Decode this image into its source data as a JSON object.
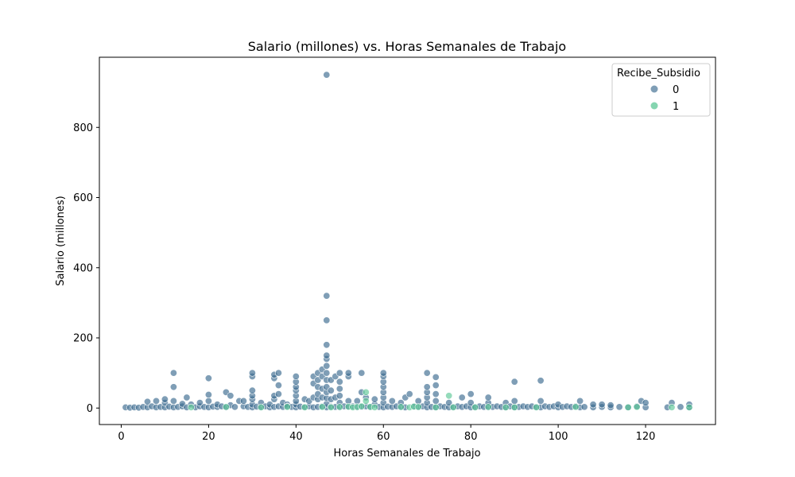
{
  "colors": {
    "series_0": "#3b6a8f",
    "series_1": "#5cc796",
    "axis": "#000000"
  },
  "chart_data": {
    "type": "scatter",
    "title": "Salario (millones) vs. Horas Semanales de Trabajo",
    "xlabel": "Horas Semanales de Trabajo",
    "ylabel": "Salario (millones)",
    "xlim": [
      -5,
      136
    ],
    "ylim": [
      -47,
      1000
    ],
    "xticks": [
      0,
      20,
      40,
      60,
      80,
      100,
      120
    ],
    "yticks": [
      0,
      200,
      400,
      600,
      800
    ],
    "grid": false,
    "legend": {
      "title": "Recibe_Subsidio",
      "placement": "top-right",
      "entries": [
        "0",
        "1"
      ]
    },
    "series": [
      {
        "name": "0",
        "points": [
          [
            1,
            2
          ],
          [
            2,
            1
          ],
          [
            3,
            2
          ],
          [
            4,
            1
          ],
          [
            5,
            3
          ],
          [
            6,
            2
          ],
          [
            6,
            18
          ],
          [
            7,
            5
          ],
          [
            8,
            2
          ],
          [
            8,
            20
          ],
          [
            9,
            3
          ],
          [
            10,
            2
          ],
          [
            10,
            15
          ],
          [
            10,
            25
          ],
          [
            11,
            4
          ],
          [
            12,
            2
          ],
          [
            12,
            20
          ],
          [
            12,
            60
          ],
          [
            12,
            100
          ],
          [
            13,
            3
          ],
          [
            14,
            5
          ],
          [
            14,
            12
          ],
          [
            15,
            2
          ],
          [
            15,
            30
          ],
          [
            16,
            10
          ],
          [
            17,
            2
          ],
          [
            18,
            5
          ],
          [
            18,
            15
          ],
          [
            19,
            3
          ],
          [
            20,
            2
          ],
          [
            20,
            20
          ],
          [
            20,
            38
          ],
          [
            20,
            85
          ],
          [
            21,
            4
          ],
          [
            22,
            3
          ],
          [
            22,
            10
          ],
          [
            23,
            5
          ],
          [
            24,
            2
          ],
          [
            24,
            45
          ],
          [
            25,
            8
          ],
          [
            25,
            35
          ],
          [
            26,
            3
          ],
          [
            27,
            20
          ],
          [
            28,
            5
          ],
          [
            28,
            20
          ],
          [
            29,
            3
          ],
          [
            30,
            2
          ],
          [
            30,
            10
          ],
          [
            30,
            25
          ],
          [
            30,
            35
          ],
          [
            30,
            50
          ],
          [
            30,
            90
          ],
          [
            30,
            100
          ],
          [
            31,
            4
          ],
          [
            32,
            3
          ],
          [
            32,
            15
          ],
          [
            33,
            5
          ],
          [
            34,
            2
          ],
          [
            34,
            10
          ],
          [
            35,
            3
          ],
          [
            35,
            25
          ],
          [
            35,
            35
          ],
          [
            35,
            85
          ],
          [
            35,
            95
          ],
          [
            36,
            5
          ],
          [
            36,
            40
          ],
          [
            36,
            65
          ],
          [
            36,
            100
          ],
          [
            37,
            3
          ],
          [
            37,
            15
          ],
          [
            38,
            10
          ],
          [
            38,
            5
          ],
          [
            39,
            3
          ],
          [
            40,
            2
          ],
          [
            40,
            10
          ],
          [
            40,
            20
          ],
          [
            40,
            35
          ],
          [
            40,
            50
          ],
          [
            40,
            60
          ],
          [
            40,
            75
          ],
          [
            40,
            90
          ],
          [
            41,
            4
          ],
          [
            42,
            3
          ],
          [
            42,
            25
          ],
          [
            43,
            5
          ],
          [
            43,
            20
          ],
          [
            44,
            2
          ],
          [
            44,
            30
          ],
          [
            44,
            70
          ],
          [
            44,
            90
          ],
          [
            45,
            3
          ],
          [
            45,
            25
          ],
          [
            45,
            40
          ],
          [
            45,
            60
          ],
          [
            45,
            80
          ],
          [
            45,
            100
          ],
          [
            46,
            5
          ],
          [
            46,
            30
          ],
          [
            46,
            55
          ],
          [
            46,
            90
          ],
          [
            46,
            110
          ],
          [
            47,
            2
          ],
          [
            47,
            12
          ],
          [
            47,
            28
          ],
          [
            47,
            45
          ],
          [
            47,
            60
          ],
          [
            47,
            80
          ],
          [
            47,
            100
          ],
          [
            47,
            120
          ],
          [
            47,
            140
          ],
          [
            47,
            150
          ],
          [
            47,
            180
          ],
          [
            47,
            250
          ],
          [
            47,
            320
          ],
          [
            47,
            950
          ],
          [
            48,
            4
          ],
          [
            48,
            25
          ],
          [
            48,
            50
          ],
          [
            48,
            80
          ],
          [
            49,
            3
          ],
          [
            49,
            30
          ],
          [
            49,
            90
          ],
          [
            50,
            2
          ],
          [
            50,
            15
          ],
          [
            50,
            35
          ],
          [
            50,
            55
          ],
          [
            50,
            75
          ],
          [
            50,
            100
          ],
          [
            51,
            5
          ],
          [
            52,
            3
          ],
          [
            52,
            20
          ],
          [
            52,
            90
          ],
          [
            52,
            100
          ],
          [
            53,
            5
          ],
          [
            54,
            2
          ],
          [
            54,
            20
          ],
          [
            55,
            3
          ],
          [
            55,
            45
          ],
          [
            55,
            100
          ],
          [
            56,
            5
          ],
          [
            56,
            30
          ],
          [
            57,
            3
          ],
          [
            58,
            10
          ],
          [
            58,
            25
          ],
          [
            59,
            3
          ],
          [
            60,
            2
          ],
          [
            60,
            15
          ],
          [
            60,
            30
          ],
          [
            60,
            45
          ],
          [
            60,
            60
          ],
          [
            60,
            75
          ],
          [
            60,
            90
          ],
          [
            60,
            100
          ],
          [
            61,
            4
          ],
          [
            62,
            3
          ],
          [
            62,
            20
          ],
          [
            63,
            5
          ],
          [
            64,
            3
          ],
          [
            64,
            15
          ],
          [
            65,
            2
          ],
          [
            65,
            30
          ],
          [
            66,
            40
          ],
          [
            67,
            5
          ],
          [
            68,
            3
          ],
          [
            68,
            20
          ],
          [
            69,
            5
          ],
          [
            70,
            2
          ],
          [
            70,
            15
          ],
          [
            70,
            30
          ],
          [
            70,
            45
          ],
          [
            70,
            60
          ],
          [
            70,
            100
          ],
          [
            71,
            3
          ],
          [
            72,
            2
          ],
          [
            72,
            20
          ],
          [
            72,
            40
          ],
          [
            72,
            65
          ],
          [
            72,
            88
          ],
          [
            73,
            5
          ],
          [
            74,
            3
          ],
          [
            75,
            2
          ],
          [
            75,
            15
          ],
          [
            76,
            3
          ],
          [
            77,
            5
          ],
          [
            78,
            3
          ],
          [
            78,
            30
          ],
          [
            79,
            5
          ],
          [
            80,
            2
          ],
          [
            80,
            15
          ],
          [
            80,
            40
          ],
          [
            81,
            3
          ],
          [
            82,
            5
          ],
          [
            83,
            3
          ],
          [
            84,
            2
          ],
          [
            84,
            15
          ],
          [
            84,
            30
          ],
          [
            85,
            3
          ],
          [
            86,
            5
          ],
          [
            87,
            3
          ],
          [
            88,
            2
          ],
          [
            88,
            15
          ],
          [
            89,
            5
          ],
          [
            90,
            2
          ],
          [
            90,
            20
          ],
          [
            90,
            75
          ],
          [
            91,
            3
          ],
          [
            92,
            5
          ],
          [
            93,
            3
          ],
          [
            94,
            5
          ],
          [
            95,
            3
          ],
          [
            96,
            2
          ],
          [
            96,
            20
          ],
          [
            96,
            78
          ],
          [
            97,
            5
          ],
          [
            98,
            3
          ],
          [
            99,
            5
          ],
          [
            100,
            2
          ],
          [
            100,
            10
          ],
          [
            101,
            3
          ],
          [
            102,
            5
          ],
          [
            103,
            3
          ],
          [
            104,
            5
          ],
          [
            105,
            2
          ],
          [
            105,
            20
          ],
          [
            106,
            3
          ],
          [
            108,
            2
          ],
          [
            108,
            10
          ],
          [
            110,
            3
          ],
          [
            110,
            10
          ],
          [
            112,
            2
          ],
          [
            112,
            8
          ],
          [
            114,
            3
          ],
          [
            116,
            2
          ],
          [
            118,
            5
          ],
          [
            119,
            20
          ],
          [
            120,
            2
          ],
          [
            120,
            15
          ],
          [
            125,
            2
          ],
          [
            126,
            15
          ],
          [
            128,
            3
          ],
          [
            130,
            2
          ],
          [
            130,
            10
          ]
        ]
      },
      {
        "name": "1",
        "points": [
          [
            16,
            2
          ],
          [
            24,
            3
          ],
          [
            32,
            2
          ],
          [
            38,
            3
          ],
          [
            42,
            2
          ],
          [
            46,
            3
          ],
          [
            48,
            2
          ],
          [
            50,
            3
          ],
          [
            52,
            4
          ],
          [
            53,
            2
          ],
          [
            54,
            3
          ],
          [
            55,
            5
          ],
          [
            56,
            20
          ],
          [
            56,
            45
          ],
          [
            57,
            3
          ],
          [
            58,
            2
          ],
          [
            64,
            3
          ],
          [
            66,
            2
          ],
          [
            67,
            4
          ],
          [
            68,
            3
          ],
          [
            72,
            2
          ],
          [
            75,
            35
          ],
          [
            76,
            2
          ],
          [
            81,
            2
          ],
          [
            84,
            3
          ],
          [
            88,
            2
          ],
          [
            90,
            2
          ],
          [
            95,
            2
          ],
          [
            104,
            3
          ],
          [
            116,
            2
          ],
          [
            118,
            3
          ],
          [
            126,
            2
          ],
          [
            130,
            2
          ]
        ]
      }
    ]
  }
}
